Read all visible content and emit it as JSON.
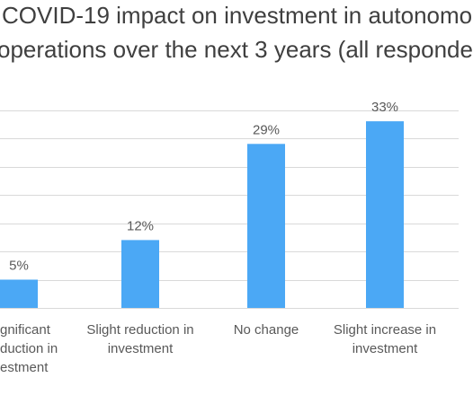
{
  "chart_data": {
    "type": "bar",
    "title_lines": [
      "COVID-19 impact on investment in autonomo",
      "operations over the next 3 years (all responde"
    ],
    "categories": [
      [
        "gnificant",
        "duction in",
        "estment"
      ],
      [
        "Slight reduction in",
        "investment"
      ],
      [
        "No change"
      ],
      [
        "Slight increase in",
        "investment"
      ]
    ],
    "values": [
      5,
      12,
      29,
      33
    ],
    "data_labels": [
      "5%",
      "12%",
      "29%",
      "33%"
    ],
    "xlabel": "",
    "ylabel": "",
    "ylim": [
      0,
      35
    ],
    "grid": true,
    "legend": "none",
    "colors": {
      "bar": "#4BA8F5",
      "grid": "#d9d9d9",
      "text": "#595959",
      "title": "#3f3f3f"
    }
  }
}
